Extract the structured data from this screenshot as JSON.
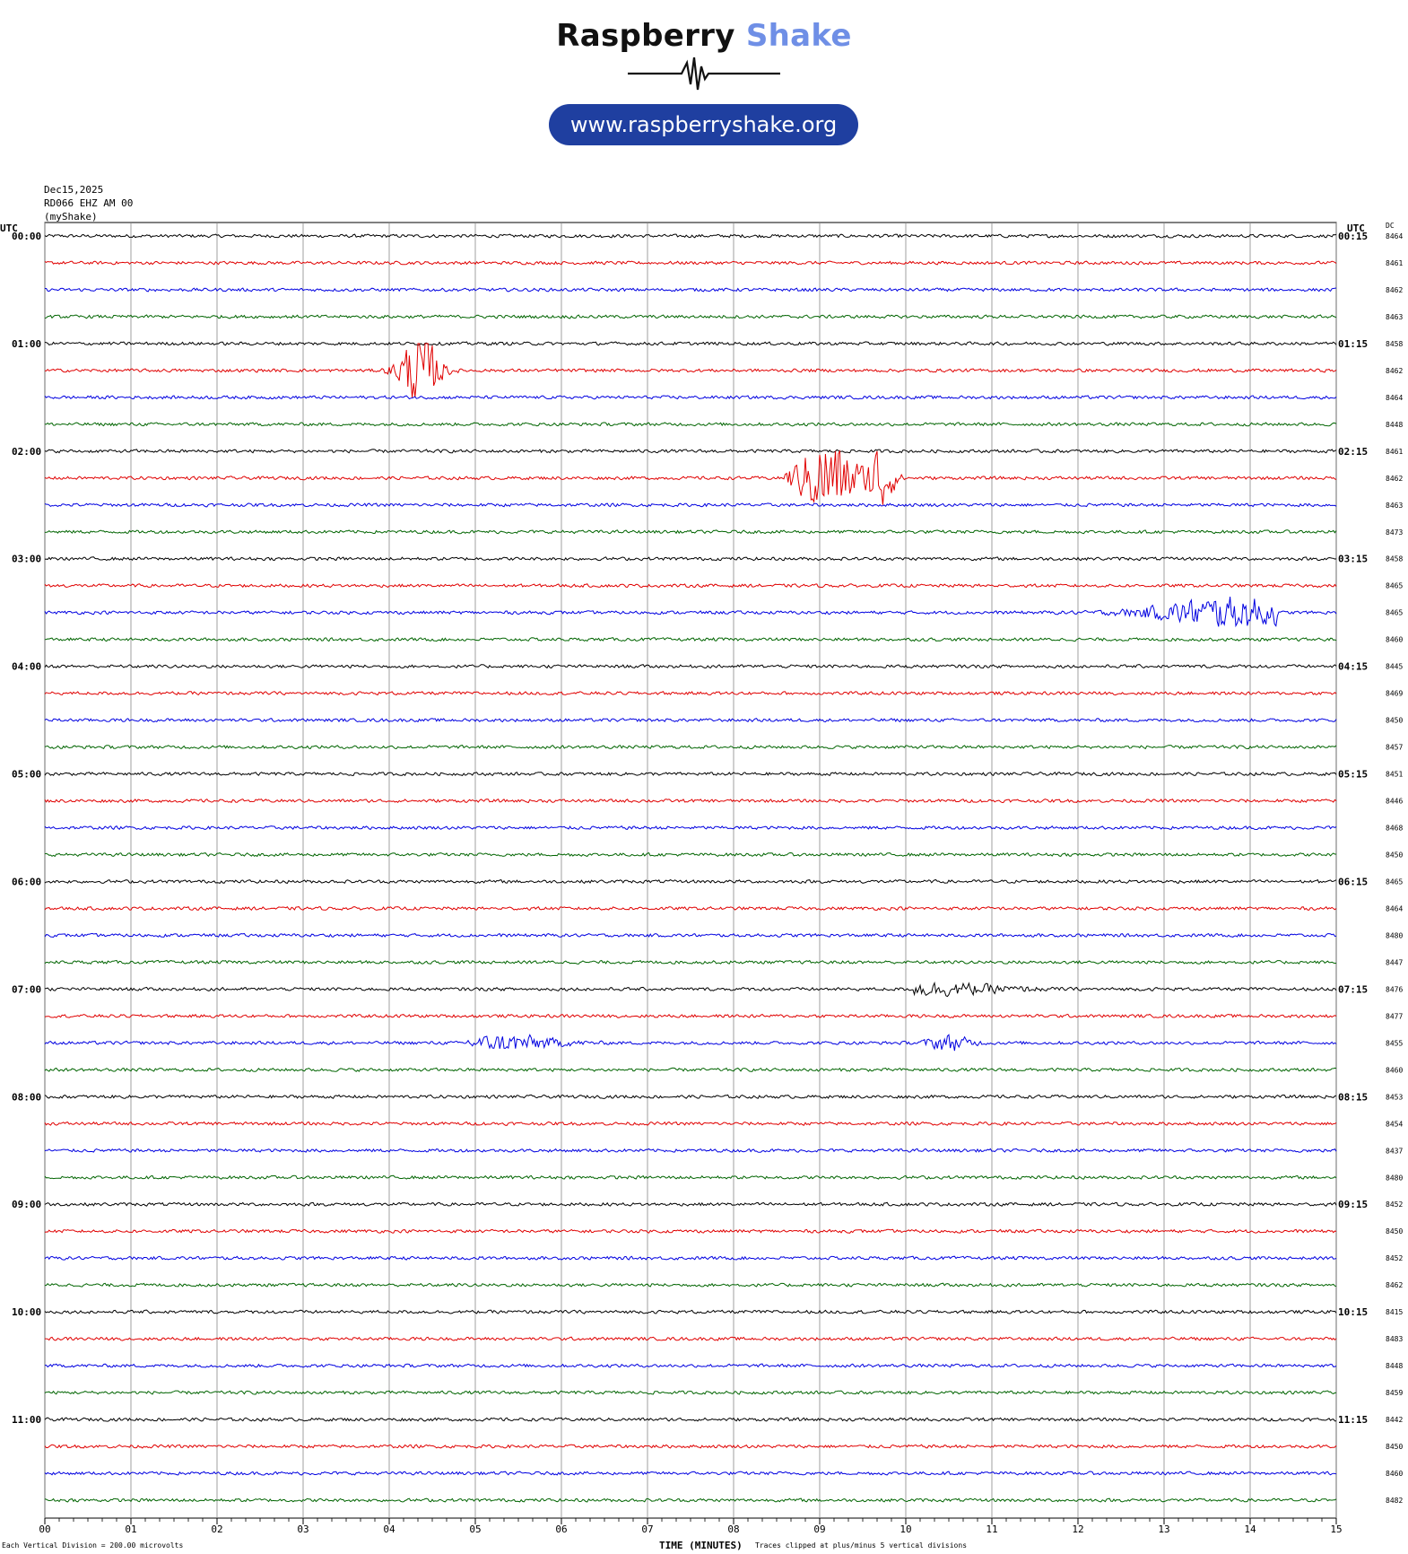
{
  "header": {
    "brand_part1": "Raspberry",
    "brand_part2": "Shake",
    "url": "www.raspberryshake.org"
  },
  "meta": {
    "date": "Dec15,2025",
    "station": "RD066 EHZ AM 00",
    "source": "(myShake)"
  },
  "footer": {
    "scale_note": "Each Vertical Division =  200.00 microvolts",
    "clip_note": "Traces clipped at plus/minus 5 vertical divisions"
  },
  "chart_data": {
    "type": "line",
    "title": "",
    "xlabel": "TIME (MINUTES)",
    "left_axis_label": "UTC",
    "right_axis_label": "UTC",
    "dc_label": "DC",
    "xlim": [
      0,
      15
    ],
    "x_ticks": [
      "00",
      "01",
      "02",
      "03",
      "04",
      "05",
      "06",
      "07",
      "08",
      "09",
      "10",
      "11",
      "12",
      "13",
      "14",
      "15"
    ],
    "grid": "vertical lines every minute",
    "trace_minutes_per_line": 15,
    "trace_colors": [
      "#000000",
      "#e00000",
      "#0000e0",
      "#006400"
    ],
    "left_labels": [
      "00:00",
      "01:00",
      "02:00",
      "03:00",
      "04:00",
      "05:00",
      "06:00",
      "07:00",
      "08:00",
      "09:00",
      "10:00",
      "11:00"
    ],
    "right_labels": [
      "00:15",
      "01:15",
      "02:15",
      "03:15",
      "04:15",
      "05:15",
      "06:15",
      "07:15",
      "08:15",
      "09:15",
      "10:15",
      "11:15"
    ],
    "dc_values": [
      "8464",
      "8461",
      "8462",
      "8463",
      "8458",
      "8462",
      "8464",
      "8448",
      "8461",
      "8462",
      "8463",
      "8473",
      "8458",
      "8465",
      "8465",
      "8460",
      "8445",
      "8469",
      "8450",
      "8457",
      "8451",
      "8446",
      "8468",
      "8450",
      "8465",
      "8464",
      "8480",
      "8447",
      "8476",
      "8477",
      "8455",
      "8460",
      "8453",
      "8454",
      "8437",
      "8480",
      "8452",
      "8450",
      "8452",
      "8462",
      "8415",
      "8483",
      "8448",
      "8459",
      "8442",
      "8450",
      "8460",
      "8482"
    ],
    "events": [
      {
        "trace": 5,
        "start_min": 3.9,
        "end_min": 4.8,
        "peak_min": 4.35,
        "amplitude_div": 5,
        "clipped": true
      },
      {
        "trace": 9,
        "start_min": 8.6,
        "end_min": 10.1,
        "peak_min": 9.1,
        "amplitude_div": 5,
        "clipped": true
      },
      {
        "trace": 9,
        "start_min": 9.4,
        "end_min": 10.0,
        "peak_min": 9.7,
        "amplitude_div": 5,
        "clipped": true
      },
      {
        "trace": 14,
        "start_min": 10.6,
        "end_min": 14.3,
        "peak_min": 13.8,
        "amplitude_div": 2,
        "clipped": false
      },
      {
        "trace": 30,
        "start_min": 4.9,
        "end_min": 7.2,
        "peak_min": 5.4,
        "amplitude_div": 1,
        "clipped": false
      },
      {
        "trace": 30,
        "start_min": 10.1,
        "end_min": 11.1,
        "peak_min": 10.5,
        "amplitude_div": 1,
        "clipped": false
      },
      {
        "trace": 28,
        "start_min": 10.1,
        "end_min": 13.5,
        "peak_min": 10.3,
        "amplitude_div": 0.8,
        "clipped": false
      }
    ]
  }
}
